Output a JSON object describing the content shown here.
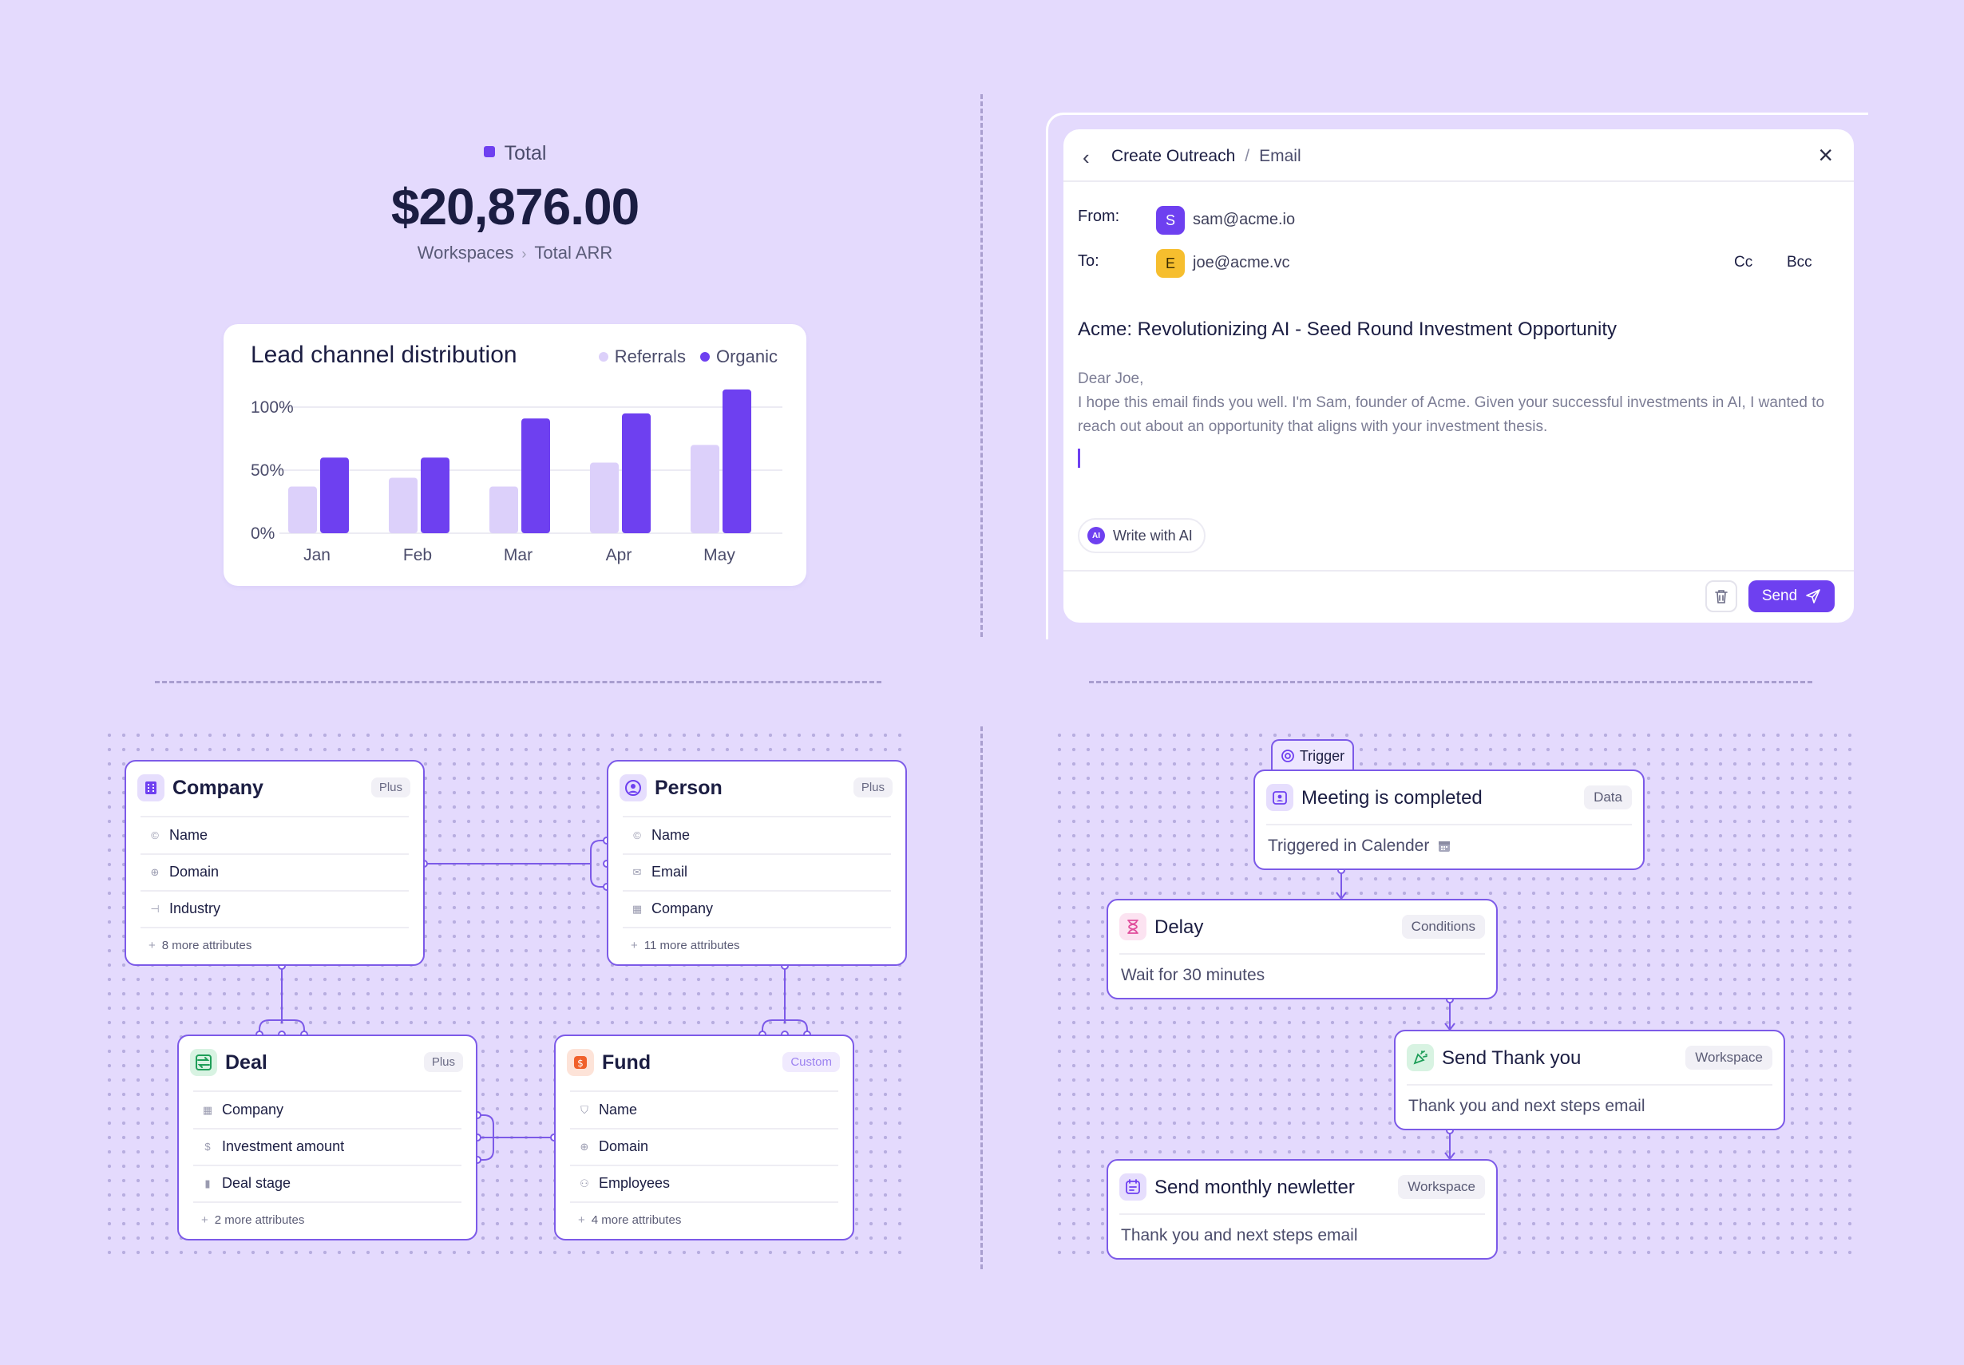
{
  "total": {
    "label": "Total",
    "value": "$20,876.00",
    "breadcrumb": [
      "Workspaces",
      "Total ARR"
    ]
  },
  "chart_data": {
    "type": "bar",
    "title": "Lead channel distribution",
    "categories": [
      "Jan",
      "Feb",
      "Mar",
      "Apr",
      "May"
    ],
    "series": [
      {
        "name": "Referrals",
        "color": "#DCD0FA",
        "values": [
          37,
          44,
          37,
          56,
          70
        ]
      },
      {
        "name": "Organic",
        "color": "#6E40F0",
        "values": [
          60,
          60,
          91,
          95,
          114
        ]
      }
    ],
    "y_ticks": [
      "100%",
      "50%",
      "0%"
    ],
    "ylim": [
      0,
      115
    ],
    "legend": "top-right",
    "grid": true
  },
  "email": {
    "breadcrumb_parent": "Create Outreach",
    "breadcrumb_sep": "/",
    "breadcrumb_current": "Email",
    "from_label": "From:",
    "from_initial": "S",
    "from_address": "sam@acme.io",
    "to_label": "To:",
    "to_initial": "E",
    "to_address": "joe@acme.vc",
    "cc": "Cc",
    "bcc": "Bcc",
    "subject": "Acme: Revolutionizing AI - Seed Round Investment Opportunity",
    "greeting": "Dear Joe,",
    "body": "I hope this email finds you well. I'm Sam, founder of Acme. Given your successful investments in AI, I wanted to reach out about an opportunity that aligns with your investment thesis.",
    "ai_icon": "AI",
    "ai_button": "Write with AI",
    "send": "Send",
    "colors": {
      "from_avatar": "#6E40F0",
      "to_avatar": "#F6BE2E"
    }
  },
  "schema": {
    "company": {
      "title": "Company",
      "badge": "Plus",
      "attrs": [
        "Name",
        "Domain",
        "Industry"
      ],
      "more": "8 more attributes"
    },
    "person": {
      "title": "Person",
      "badge": "Plus",
      "attrs": [
        "Name",
        "Email",
        "Company"
      ],
      "more": "11 more attributes"
    },
    "deal": {
      "title": "Deal",
      "badge": "Plus",
      "attrs": [
        "Company",
        "Investment amount",
        "Deal stage"
      ],
      "more": "2 more attributes"
    },
    "fund": {
      "title": "Fund",
      "badge": "Custom",
      "attrs": [
        "Name",
        "Domain",
        "Employees"
      ],
      "more": "4 more attributes"
    }
  },
  "workflow": {
    "trigger_tab": "Trigger",
    "meeting": {
      "title": "Meeting is completed",
      "badge": "Data",
      "desc": "Triggered in Calender"
    },
    "delay": {
      "title": "Delay",
      "badge": "Conditions",
      "desc": "Wait for 30 minutes"
    },
    "thanks": {
      "title": "Send Thank you",
      "badge": "Workspace",
      "desc": "Thank you and next steps email"
    },
    "newsletter": {
      "title": "Send monthly newletter",
      "badge": "Workspace",
      "desc": "Thank you and next steps email"
    }
  }
}
